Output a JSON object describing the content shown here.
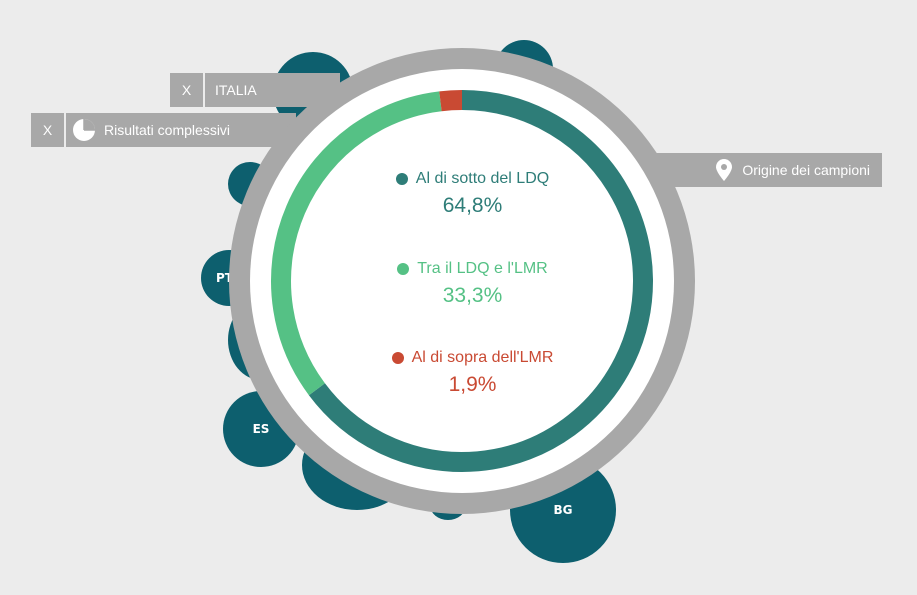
{
  "bubbles": [
    "PT",
    "ES",
    "BG"
  ],
  "tags": {
    "country": {
      "close": "X",
      "label": "ITALIA"
    },
    "results": {
      "close": "X",
      "label": "Risultati complessivi",
      "icon": "pie-chart-icon"
    },
    "origin": {
      "label": "Origine dei campioni",
      "icon": "map-pin-icon"
    }
  },
  "chart_data": {
    "type": "pie",
    "categories": [
      "Al di sotto del LDQ",
      "Tra il LDQ e l'LMR",
      "Al di sopra dell'LMR"
    ],
    "values": [
      64.8,
      33.3,
      1.9
    ],
    "value_labels": [
      "64,8%",
      "33,3%",
      "1,9%"
    ],
    "colors": [
      "#2e7d78",
      "#55c185",
      "#c94a33"
    ]
  }
}
